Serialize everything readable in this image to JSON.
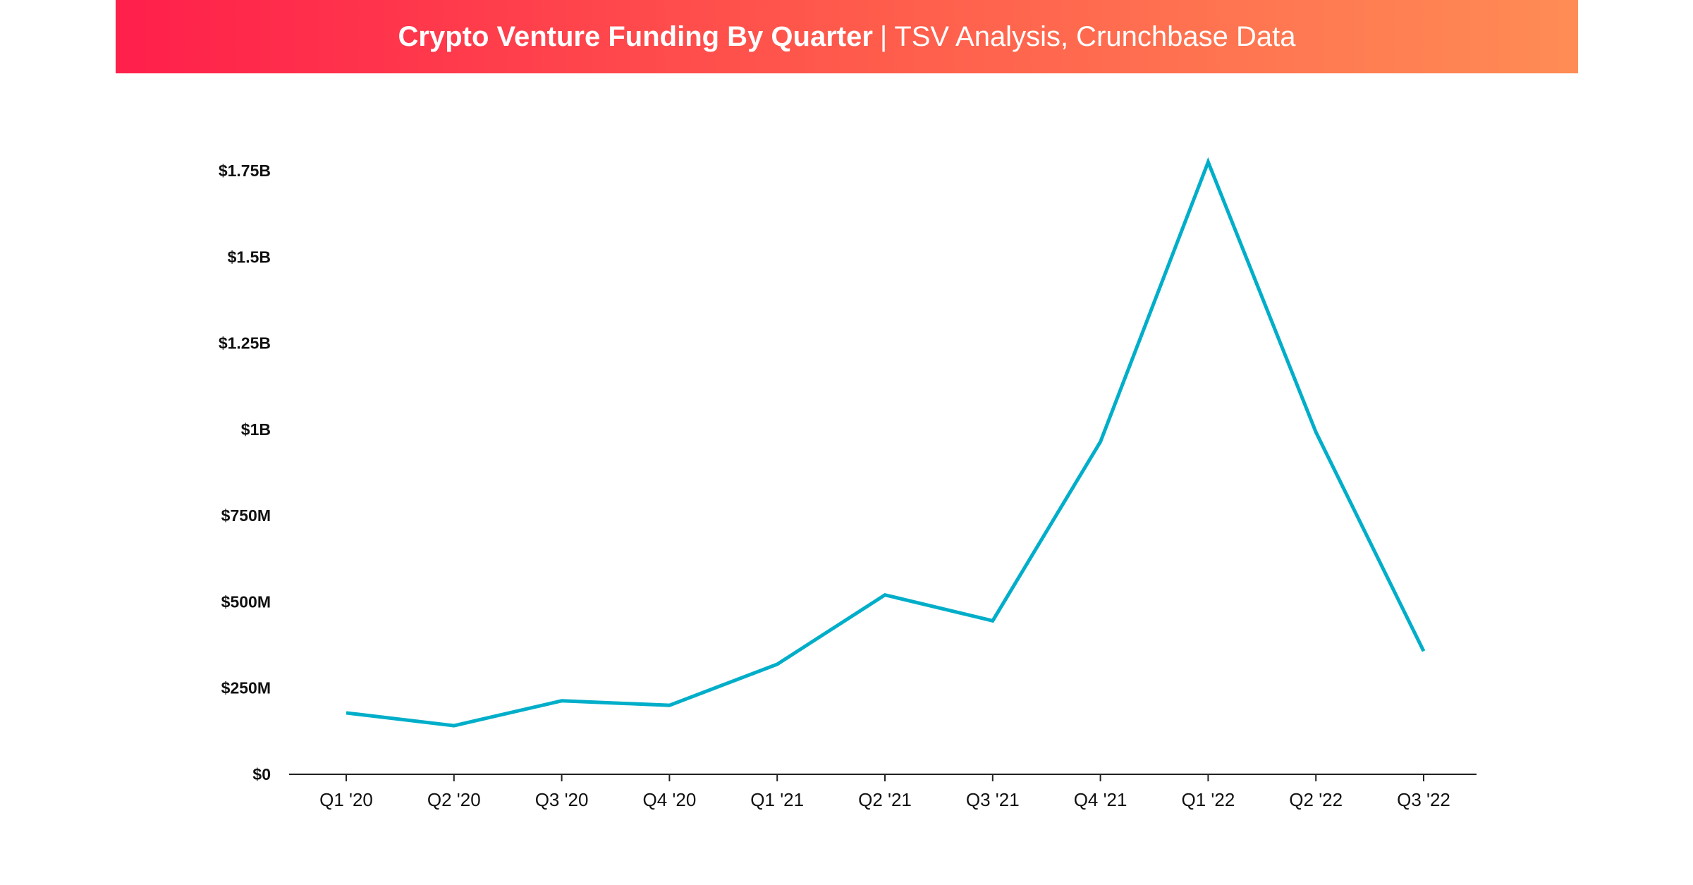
{
  "header": {
    "title_bold": "Crypto Venture Funding By Quarter",
    "separator": "|",
    "title_rest": "TSV Analysis, Crunchbase Data"
  },
  "colors": {
    "line": "#00aec9",
    "header_start": "#ff1f4b",
    "header_end": "#ff8c55",
    "axis": "#222222"
  },
  "chart_data": {
    "type": "line",
    "title": "Crypto Venture Funding By Quarter | TSV Analysis, Crunchbase Data",
    "categories": [
      "Q1 '20",
      "Q2 '20",
      "Q3 '20",
      "Q4 '20",
      "Q1 '21",
      "Q2 '21",
      "Q3 '21",
      "Q4 '21",
      "Q1 '22",
      "Q2 '22",
      "Q3 '22"
    ],
    "series": [
      {
        "values_musd": [
          178,
          141,
          213,
          200,
          319,
          520,
          445,
          964,
          1775,
          992,
          357
        ]
      }
    ],
    "y_ticks": [
      0,
      250,
      500,
      750,
      1000,
      1250,
      1500,
      1750
    ],
    "y_tick_labels": [
      "$0",
      "$250M",
      "$500M",
      "$750M",
      "$1B",
      "$1.25B",
      "$1.5B",
      "$1.75B"
    ],
    "ylim": [
      0,
      1750
    ],
    "unit": "USD millions",
    "grid": false,
    "legend": "none"
  }
}
